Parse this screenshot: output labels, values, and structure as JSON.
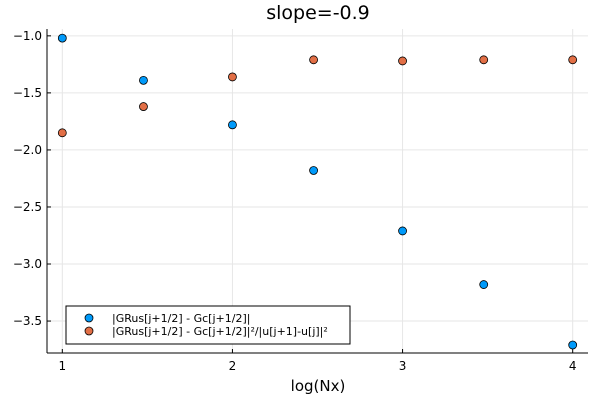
{
  "chart_data": {
    "type": "scatter",
    "title": "slope=-0.9",
    "xlabel": "log(Nx)",
    "ylabel": "",
    "xlim": [
      0.91,
      4.09
    ],
    "ylim": [
      -3.78,
      -0.94
    ],
    "xticks": [
      1,
      2,
      3,
      4
    ],
    "xtick_labels": [
      "1",
      "2",
      "3",
      "4"
    ],
    "yticks": [
      -3.5,
      -3.0,
      -2.5,
      -2.0,
      -1.5,
      -1.0
    ],
    "ytick_labels": [
      "−3.5",
      "−3.0",
      "−2.5",
      "−2.0",
      "−1.5",
      "−1.0"
    ],
    "grid": true,
    "legend_position": "bottom-left",
    "series": [
      {
        "name": "|GRus[j+1/2] - Gc[j+1/2]|",
        "color": "#009AFA",
        "x": [
          1.0,
          1.477,
          2.0,
          2.477,
          3.0,
          3.477,
          4.0
        ],
        "y": [
          -1.02,
          -1.39,
          -1.78,
          -2.18,
          -2.71,
          -3.18,
          -3.71
        ]
      },
      {
        "name": "|GRus[j+1/2] - Gc[j+1/2]|²/|u[j+1]-u[j]|²",
        "color": "#E26F46",
        "x": [
          1.0,
          1.477,
          2.0,
          2.477,
          3.0,
          3.477,
          4.0
        ],
        "y": [
          -1.85,
          -1.62,
          -1.36,
          -1.21,
          -1.22,
          -1.21,
          -1.21
        ]
      }
    ]
  }
}
